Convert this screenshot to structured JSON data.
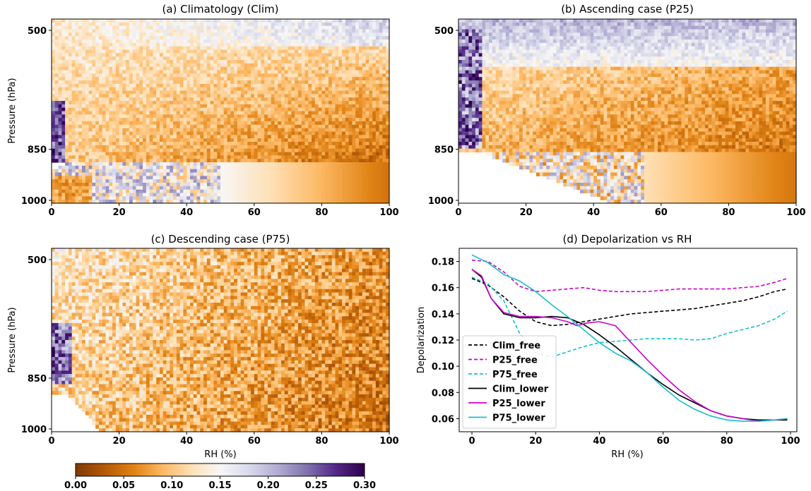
{
  "colorbar": {
    "cmap": "PuOr",
    "vmin": 0.0,
    "vmax": 0.3,
    "ticks": [
      "0.00",
      "0.05",
      "0.10",
      "0.15",
      "0.20",
      "0.25",
      "0.30"
    ]
  },
  "chart_data": [
    {
      "type": "heatmap",
      "title": "(a) Climatology (Clim)",
      "xlabel": "",
      "ylabel": "Pressure (hPa)",
      "xlim": [
        0,
        100
      ],
      "ylim": [
        1000,
        500
      ],
      "xticks": [
        "0",
        "20",
        "40",
        "60",
        "80",
        "100"
      ],
      "yticks": [
        "500",
        "850",
        "1000"
      ],
      "grid": "approximate depolarization field; orange (low) over most RH, purple (high) at low RH and upper levels"
    },
    {
      "type": "heatmap",
      "title": "(b) Ascending case (P25)",
      "xlabel": "",
      "ylabel": "",
      "xlim": [
        0,
        100
      ],
      "ylim": [
        1000,
        500
      ],
      "xticks": [
        "0",
        "20",
        "40",
        "60",
        "80",
        "100"
      ],
      "yticks": [
        "500",
        "850",
        "1000"
      ],
      "grid": "approximate depolarization field; purple band at upper levels, orange at mid/low levels and high RH"
    },
    {
      "type": "heatmap",
      "title": "(c) Descending case (P75)",
      "xlabel": "RH (%)",
      "ylabel": "Pressure (hPa)",
      "xlim": [
        0,
        100
      ],
      "ylim": [
        1000,
        500
      ],
      "xticks": [
        "0",
        "20",
        "40",
        "60",
        "80",
        "100"
      ],
      "yticks": [
        "500",
        "850",
        "1000"
      ],
      "grid": "approximate depolarization field; noisy, orange dominant at high RH"
    },
    {
      "type": "line",
      "title": "(d) Depolarization vs RH",
      "xlabel": "RH (%)",
      "ylabel": "Depolarization",
      "xlim": [
        -4,
        102
      ],
      "ylim": [
        0.05,
        0.19
      ],
      "xticks": [
        0,
        20,
        40,
        60,
        80,
        100
      ],
      "yticks": [
        0.06,
        0.08,
        0.1,
        0.12,
        0.14,
        0.16,
        0.18
      ],
      "legend": "lower-left",
      "series": [
        {
          "name": "Clim_free",
          "color": "#000000",
          "dash": true,
          "x": [
            0,
            5,
            10,
            15,
            20,
            25,
            30,
            35,
            40,
            45,
            50,
            55,
            60,
            65,
            70,
            75,
            80,
            85,
            90,
            95,
            99
          ],
          "y": [
            0.167,
            0.162,
            0.153,
            0.142,
            0.134,
            0.131,
            0.132,
            0.134,
            0.136,
            0.138,
            0.14,
            0.141,
            0.142,
            0.143,
            0.144,
            0.146,
            0.148,
            0.15,
            0.153,
            0.157,
            0.159
          ]
        },
        {
          "name": "P25_free",
          "color": "#cc00cc",
          "dash": true,
          "x": [
            0,
            5,
            10,
            15,
            20,
            25,
            30,
            35,
            40,
            45,
            50,
            55,
            60,
            65,
            70,
            75,
            80,
            85,
            90,
            95,
            99
          ],
          "y": [
            0.181,
            0.18,
            0.172,
            0.161,
            0.157,
            0.158,
            0.159,
            0.16,
            0.158,
            0.157,
            0.157,
            0.157,
            0.158,
            0.159,
            0.159,
            0.159,
            0.159,
            0.16,
            0.161,
            0.164,
            0.167
          ]
        },
        {
          "name": "P75_free",
          "color": "#17becf",
          "dash": true,
          "x": [
            0,
            5,
            10,
            15,
            20,
            25,
            30,
            35,
            40,
            45,
            50,
            55,
            60,
            65,
            70,
            75,
            80,
            85,
            90,
            95,
            99
          ],
          "y": [
            0.168,
            0.163,
            0.15,
            0.125,
            0.11,
            0.107,
            0.111,
            0.115,
            0.118,
            0.119,
            0.12,
            0.121,
            0.121,
            0.121,
            0.12,
            0.121,
            0.125,
            0.128,
            0.131,
            0.136,
            0.142
          ]
        },
        {
          "name": "Clim_lower",
          "color": "#000000",
          "dash": false,
          "x": [
            0,
            3,
            6,
            10,
            15,
            20,
            25,
            30,
            35,
            40,
            45,
            50,
            55,
            60,
            65,
            70,
            75,
            80,
            85,
            90,
            95,
            99
          ],
          "y": [
            0.174,
            0.168,
            0.152,
            0.14,
            0.137,
            0.137,
            0.138,
            0.137,
            0.132,
            0.124,
            0.115,
            0.105,
            0.095,
            0.086,
            0.078,
            0.072,
            0.066,
            0.062,
            0.06,
            0.059,
            0.059,
            0.059
          ]
        },
        {
          "name": "P25_lower",
          "color": "#cc00cc",
          "dash": false,
          "x": [
            0,
            3,
            6,
            10,
            15,
            20,
            25,
            30,
            33,
            36,
            40,
            45,
            50,
            55,
            60,
            65,
            70,
            75,
            80,
            85,
            90,
            95,
            99
          ],
          "y": [
            0.174,
            0.169,
            0.152,
            0.141,
            0.138,
            0.138,
            0.137,
            0.134,
            0.131,
            0.133,
            0.134,
            0.131,
            0.118,
            0.105,
            0.093,
            0.082,
            0.073,
            0.066,
            0.062,
            0.06,
            0.058,
            0.059,
            0.06
          ]
        },
        {
          "name": "P75_lower",
          "color": "#17becf",
          "dash": false,
          "x": [
            0,
            5,
            10,
            15,
            20,
            25,
            30,
            35,
            40,
            45,
            50,
            55,
            60,
            65,
            70,
            75,
            80,
            85,
            90,
            95,
            99
          ],
          "y": [
            0.185,
            0.179,
            0.17,
            0.165,
            0.157,
            0.147,
            0.138,
            0.128,
            0.118,
            0.11,
            0.104,
            0.095,
            0.084,
            0.074,
            0.067,
            0.062,
            0.059,
            0.058,
            0.058,
            0.059,
            0.06
          ]
        }
      ]
    }
  ]
}
